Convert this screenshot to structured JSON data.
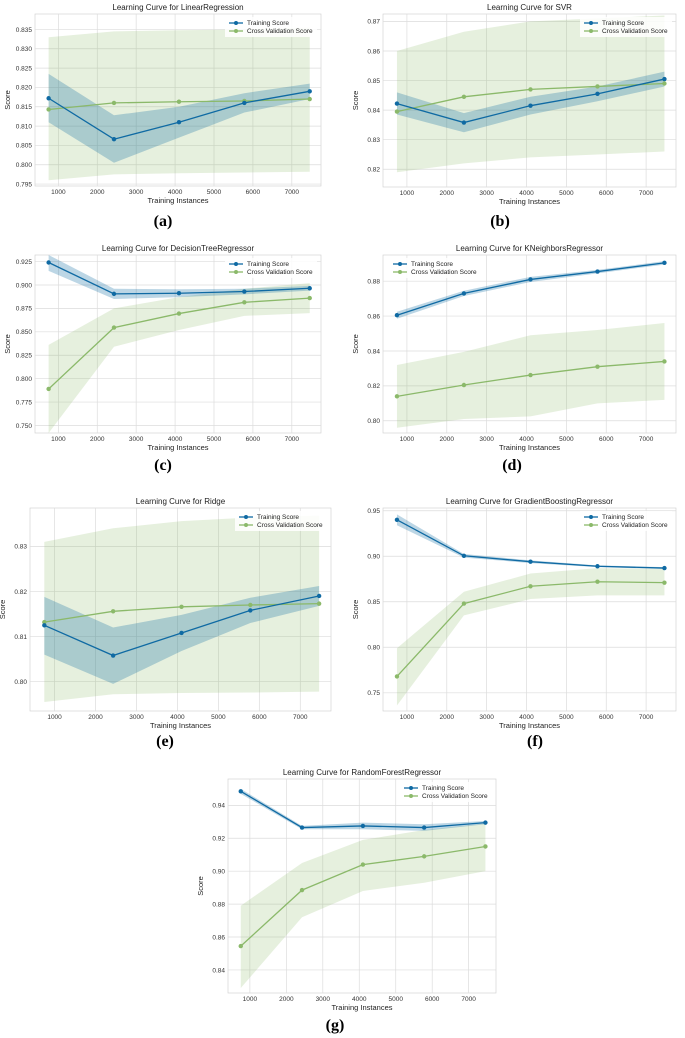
{
  "colors": {
    "train": "#0f6aa3",
    "train_band": "#0f6aa3",
    "cv": "#8bb96a",
    "cv_band": "#8bb96a",
    "plot_bg": "#ffffff",
    "grid": "#dcdcdc"
  },
  "chart_data": [
    {
      "type": "line",
      "label": "(a)",
      "title": "Learning Curve for LinearRegression",
      "xlabel": "Training Instances",
      "ylabel": "Score",
      "xlim": [
        400,
        7750
      ],
      "ylim": [
        0.7945,
        0.839
      ],
      "xticks": [
        1000,
        2000,
        3000,
        4000,
        5000,
        6000,
        7000
      ],
      "yticks": [
        0.795,
        0.8,
        0.805,
        0.81,
        0.815,
        0.82,
        0.825,
        0.83,
        0.835
      ],
      "ytick_labels": [
        "0.795",
        "0.800",
        "0.805",
        "0.810",
        "0.815",
        "0.820",
        "0.825",
        "0.830",
        "0.835"
      ],
      "legend_position": "top-right",
      "x": [
        750,
        2430,
        4100,
        5780,
        7460
      ],
      "series": [
        {
          "name": "Training Score",
          "values": [
            0.8172,
            0.8066,
            0.811,
            0.816,
            0.819
          ],
          "lower": [
            0.811,
            0.8005,
            0.807,
            0.8135,
            0.817
          ],
          "upper": [
            0.8235,
            0.8128,
            0.815,
            0.8185,
            0.821
          ]
        },
        {
          "name": "Cross Validation Score",
          "values": [
            0.8143,
            0.816,
            0.8163,
            0.8165,
            0.817
          ],
          "lower": [
            0.796,
            0.7975,
            0.7978,
            0.798,
            0.7982
          ],
          "upper": [
            0.833,
            0.8345,
            0.8348,
            0.835,
            0.8355
          ]
        }
      ]
    },
    {
      "type": "line",
      "label": "(b)",
      "title": "Learning Curve for SVR",
      "xlabel": "Training Instances",
      "ylabel": "Score",
      "xlim": [
        400,
        7750
      ],
      "ylim": [
        0.814,
        0.8725
      ],
      "xticks": [
        1000,
        2000,
        3000,
        4000,
        5000,
        6000,
        7000
      ],
      "yticks": [
        0.82,
        0.83,
        0.84,
        0.85,
        0.86,
        0.87
      ],
      "ytick_labels": [
        "0.82",
        "0.83",
        "0.84",
        "0.85",
        "0.86",
        "0.87"
      ],
      "legend_position": "top-right",
      "x": [
        750,
        2430,
        4100,
        5780,
        7460
      ],
      "series": [
        {
          "name": "Training Score",
          "values": [
            0.8422,
            0.8358,
            0.8415,
            0.8455,
            0.8505
          ],
          "lower": [
            0.8385,
            0.8325,
            0.8385,
            0.843,
            0.848
          ],
          "upper": [
            0.846,
            0.839,
            0.8445,
            0.848,
            0.853
          ]
        },
        {
          "name": "Cross Validation Score",
          "values": [
            0.8395,
            0.8445,
            0.847,
            0.848,
            0.849
          ],
          "lower": [
            0.819,
            0.822,
            0.824,
            0.825,
            0.826
          ],
          "upper": [
            0.86,
            0.8665,
            0.87,
            0.871,
            0.872
          ]
        }
      ]
    },
    {
      "type": "line",
      "label": "(c)",
      "title": "Learning Curve for DecisionTreeRegressor",
      "xlabel": "Training Instances",
      "ylabel": "Score",
      "xlim": [
        400,
        7750
      ],
      "ylim": [
        0.742,
        0.932
      ],
      "xticks": [
        1000,
        2000,
        3000,
        4000,
        5000,
        6000,
        7000
      ],
      "yticks": [
        0.75,
        0.775,
        0.8,
        0.825,
        0.85,
        0.875,
        0.9,
        0.925
      ],
      "ytick_labels": [
        "0.750",
        "0.775",
        "0.800",
        "0.825",
        "0.850",
        "0.875",
        "0.900",
        "0.925"
      ],
      "legend_position": "top-right",
      "x": [
        750,
        2430,
        4100,
        5780,
        7460
      ],
      "series": [
        {
          "name": "Training Score",
          "values": [
            0.924,
            0.8905,
            0.8912,
            0.893,
            0.8965
          ],
          "lower": [
            0.915,
            0.885,
            0.887,
            0.89,
            0.894
          ],
          "upper": [
            0.932,
            0.896,
            0.8955,
            0.896,
            0.899
          ]
        },
        {
          "name": "Cross Validation Score",
          "values": [
            0.789,
            0.8545,
            0.8695,
            0.8815,
            0.886
          ],
          "lower": [
            0.742,
            0.834,
            0.852,
            0.867,
            0.87
          ],
          "upper": [
            0.836,
            0.875,
            0.887,
            0.896,
            0.902
          ]
        }
      ]
    },
    {
      "type": "line",
      "label": "(d)",
      "title": "Learning Curve for KNeighborsRegressor",
      "xlabel": "Training Instances",
      "ylabel": "Score",
      "xlim": [
        400,
        7750
      ],
      "ylim": [
        0.793,
        0.895
      ],
      "xticks": [
        1000,
        2000,
        3000,
        4000,
        5000,
        6000,
        7000
      ],
      "yticks": [
        0.8,
        0.82,
        0.84,
        0.86,
        0.88
      ],
      "ytick_labels": [
        "0.80",
        "0.82",
        "0.84",
        "0.86",
        "0.88"
      ],
      "legend_position": "top-left",
      "x": [
        750,
        2430,
        4100,
        5780,
        7460
      ],
      "series": [
        {
          "name": "Training Score",
          "values": [
            0.8605,
            0.873,
            0.881,
            0.8855,
            0.8905
          ],
          "lower": [
            0.8585,
            0.8715,
            0.8795,
            0.8845,
            0.8895
          ],
          "upper": [
            0.8625,
            0.8745,
            0.8825,
            0.8865,
            0.8915
          ]
        },
        {
          "name": "Cross Validation Score",
          "values": [
            0.814,
            0.8205,
            0.8262,
            0.831,
            0.834
          ],
          "lower": [
            0.796,
            0.801,
            0.8025,
            0.81,
            0.812
          ],
          "upper": [
            0.832,
            0.8395,
            0.849,
            0.852,
            0.856
          ]
        }
      ]
    },
    {
      "type": "line",
      "label": "(e)",
      "title": "Learning Curve for Ridge",
      "xlabel": "Training Instances",
      "ylabel": "Score",
      "xlim": [
        400,
        7750
      ],
      "ylim": [
        0.7935,
        0.8385
      ],
      "xticks": [
        1000,
        2000,
        3000,
        4000,
        5000,
        6000,
        7000
      ],
      "yticks": [
        0.8,
        0.81,
        0.82,
        0.83
      ],
      "ytick_labels": [
        "0.80",
        "0.81",
        "0.82",
        "0.83"
      ],
      "legend_position": "top-right",
      "x": [
        750,
        2430,
        4100,
        5780,
        7460
      ],
      "series": [
        {
          "name": "Training Score",
          "values": [
            0.8125,
            0.8058,
            0.8108,
            0.8158,
            0.819
          ],
          "lower": [
            0.806,
            0.7995,
            0.8068,
            0.813,
            0.8168
          ],
          "upper": [
            0.8188,
            0.812,
            0.8148,
            0.8186,
            0.8212
          ]
        },
        {
          "name": "Cross Validation Score",
          "values": [
            0.8132,
            0.8156,
            0.8166,
            0.817,
            0.8173
          ],
          "lower": [
            0.7955,
            0.7972,
            0.7975,
            0.7976,
            0.7978
          ],
          "upper": [
            0.831,
            0.834,
            0.8356,
            0.8364,
            0.8368
          ]
        }
      ]
    },
    {
      "type": "line",
      "label": "(f)",
      "title": "Learning Curve for GradientBoostingRegressor",
      "xlabel": "Training Instances",
      "ylabel": "Score",
      "xlim": [
        400,
        7750
      ],
      "ylim": [
        0.73,
        0.953
      ],
      "xticks": [
        1000,
        2000,
        3000,
        4000,
        5000,
        6000,
        7000
      ],
      "yticks": [
        0.75,
        0.8,
        0.85,
        0.9,
        0.95
      ],
      "ytick_labels": [
        "0.75",
        "0.80",
        "0.85",
        "0.90",
        "0.95"
      ],
      "legend_position": "top-right",
      "x": [
        750,
        2430,
        4100,
        5780,
        7460
      ],
      "series": [
        {
          "name": "Training Score",
          "values": [
            0.94,
            0.9005,
            0.894,
            0.889,
            0.887
          ],
          "lower": [
            0.934,
            0.8985,
            0.8925,
            0.888,
            0.886
          ],
          "upper": [
            0.946,
            0.9025,
            0.8955,
            0.89,
            0.888
          ]
        },
        {
          "name": "Cross Validation Score",
          "values": [
            0.768,
            0.848,
            0.867,
            0.872,
            0.871
          ],
          "lower": [
            0.736,
            0.835,
            0.853,
            0.857,
            0.857
          ],
          "upper": [
            0.799,
            0.861,
            0.881,
            0.887,
            0.886
          ]
        }
      ]
    },
    {
      "type": "line",
      "label": "(g)",
      "title": "Learning Curve for RandomForestRegressor",
      "xlabel": "Training Instances",
      "ylabel": "Score",
      "xlim": [
        400,
        7750
      ],
      "ylim": [
        0.826,
        0.956
      ],
      "xticks": [
        1000,
        2000,
        3000,
        4000,
        5000,
        6000,
        7000
      ],
      "yticks": [
        0.84,
        0.86,
        0.88,
        0.9,
        0.92,
        0.94
      ],
      "ytick_labels": [
        "0.84",
        "0.86",
        "0.88",
        "0.90",
        "0.92",
        "0.94"
      ],
      "legend_position": "top-right",
      "x": [
        750,
        2430,
        4100,
        5780,
        7460
      ],
      "series": [
        {
          "name": "Training Score",
          "values": [
            0.9485,
            0.9265,
            0.9275,
            0.9265,
            0.9295
          ],
          "lower": [
            0.947,
            0.9255,
            0.9255,
            0.9245,
            0.9285
          ],
          "upper": [
            0.95,
            0.9275,
            0.9295,
            0.9285,
            0.9305
          ]
        },
        {
          "name": "Cross Validation Score",
          "values": [
            0.8545,
            0.8885,
            0.904,
            0.909,
            0.915
          ],
          "lower": [
            0.829,
            0.872,
            0.888,
            0.893,
            0.9
          ],
          "upper": [
            0.879,
            0.905,
            0.919,
            0.925,
            0.929
          ]
        }
      ]
    }
  ]
}
